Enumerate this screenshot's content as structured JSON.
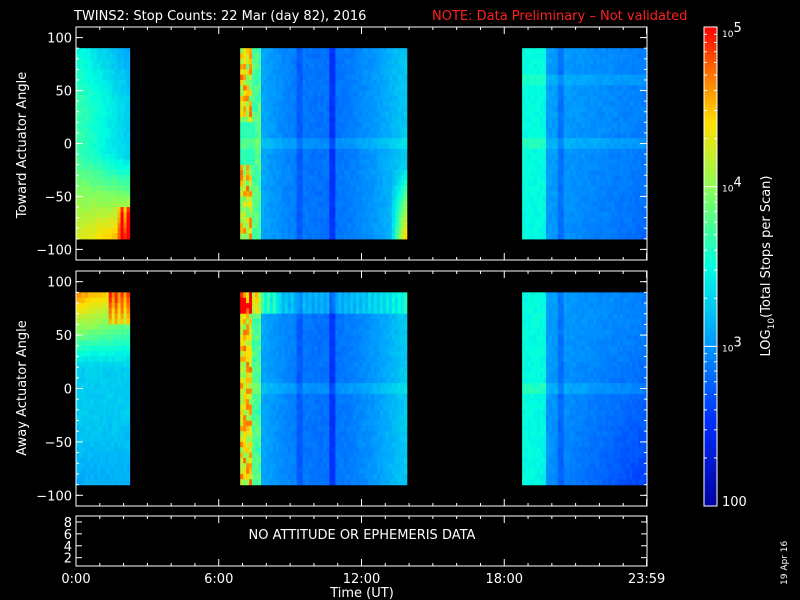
{
  "title": {
    "main": "TWINS2: Stop Counts: 22 Mar (day  82), 2016",
    "note": "NOTE: Data Preliminary – Not validated"
  },
  "date_stamp": "19 Apr 16",
  "colors": {
    "background": "#000000",
    "text": "#ffffff",
    "note": "#ff2020"
  },
  "chart_data": [
    {
      "type": "heatmap",
      "panel": "top",
      "ylabel": "Toward Actuator Angle",
      "ylim": [
        -110,
        110
      ],
      "yticks": [
        "100",
        "50",
        "0",
        "−50",
        "−100"
      ],
      "ytick_values": [
        100,
        50,
        0,
        -50,
        -100
      ],
      "xlim": [
        0,
        24
      ],
      "angle_range": [
        -90,
        90
      ],
      "data_intervals_hours": [
        [
          0.0,
          2.25
        ],
        [
          6.9,
          13.9
        ],
        [
          18.75,
          24.0
        ]
      ],
      "notes": "log10 total stops per scan; high (red/orange) near edges at start of interval 1 (low angles) and around 07:00 and 13:30; mostly blue/cyan elsewhere"
    },
    {
      "type": "heatmap",
      "panel": "middle",
      "ylabel": "Away Actuator Angle",
      "ylim": [
        -110,
        110
      ],
      "yticks": [
        "100",
        "50",
        "0",
        "−50",
        "−100"
      ],
      "ytick_values": [
        100,
        50,
        0,
        -50,
        -100
      ],
      "xlim": [
        0,
        24
      ],
      "angle_range": [
        -90,
        90
      ],
      "data_intervals_hours": [
        [
          0.0,
          2.25
        ],
        [
          6.9,
          13.9
        ],
        [
          18.75,
          24.0
        ]
      ],
      "notes": "high (red/orange) near +90 at start of intervals 1 and 2; mostly cyan/blue elsewhere"
    }
  ],
  "colorbar": {
    "label": "LOG10(Total Stops per Scan)",
    "label_base": "LOG",
    "label_sub": "10",
    "label_rest": "(Total Stops per Scan)",
    "ticks": [
      "10^5",
      "10^4",
      "10^3",
      "100"
    ],
    "tick_values": [
      100000,
      10000,
      1000,
      100
    ],
    "scale": "log",
    "range": [
      100,
      100000
    ]
  },
  "attitude_panel": {
    "yticks": [
      "8",
      "6",
      "4",
      "2"
    ],
    "message": "NO ATTITUDE OR EPHEMERIS DATA"
  },
  "xaxis": {
    "label": "Time (UT)",
    "ticks": [
      "0:00",
      "6:00",
      "12:00",
      "18:00",
      "23:59"
    ],
    "tick_values": [
      0,
      6,
      12,
      18,
      23.983
    ]
  }
}
